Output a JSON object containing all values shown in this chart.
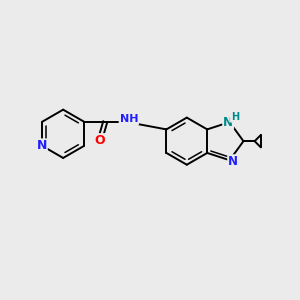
{
  "background_color": "#ebebeb",
  "bond_color": "#000000",
  "n_blue": "#2020ff",
  "n_teal": "#008b8b",
  "o_red": "#ff0000",
  "lw": 1.4,
  "lw_inner": 1.1,
  "figsize": [
    3.0,
    3.0
  ],
  "dpi": 100,
  "xlim": [
    0,
    10
  ],
  "ylim": [
    0,
    10
  ]
}
